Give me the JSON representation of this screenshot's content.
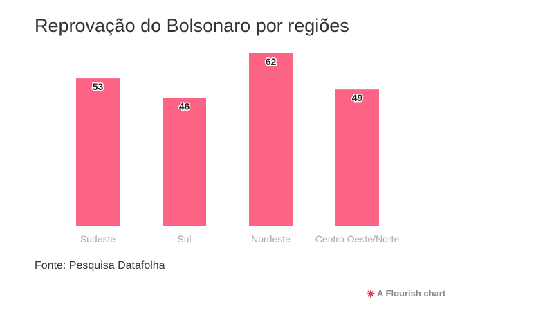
{
  "chart_data": {
    "type": "bar",
    "title": "Reprovação do Bolsonaro por regiões",
    "categories": [
      "Sudeste",
      "Sul",
      "Nordeste",
      "Centro Oeste/Norte"
    ],
    "values": [
      53,
      46,
      62,
      49
    ],
    "xlabel": "",
    "ylabel": "",
    "ylim": [
      0,
      62
    ],
    "grid": false,
    "bar_color": "#fc6384",
    "data_labels": true
  },
  "footer": {
    "source": "Fonte: Pesquisa Datafolha",
    "credit": "A Flourish chart",
    "credit_icon": "flourish-logo-icon",
    "credit_color": "#e8203c"
  }
}
